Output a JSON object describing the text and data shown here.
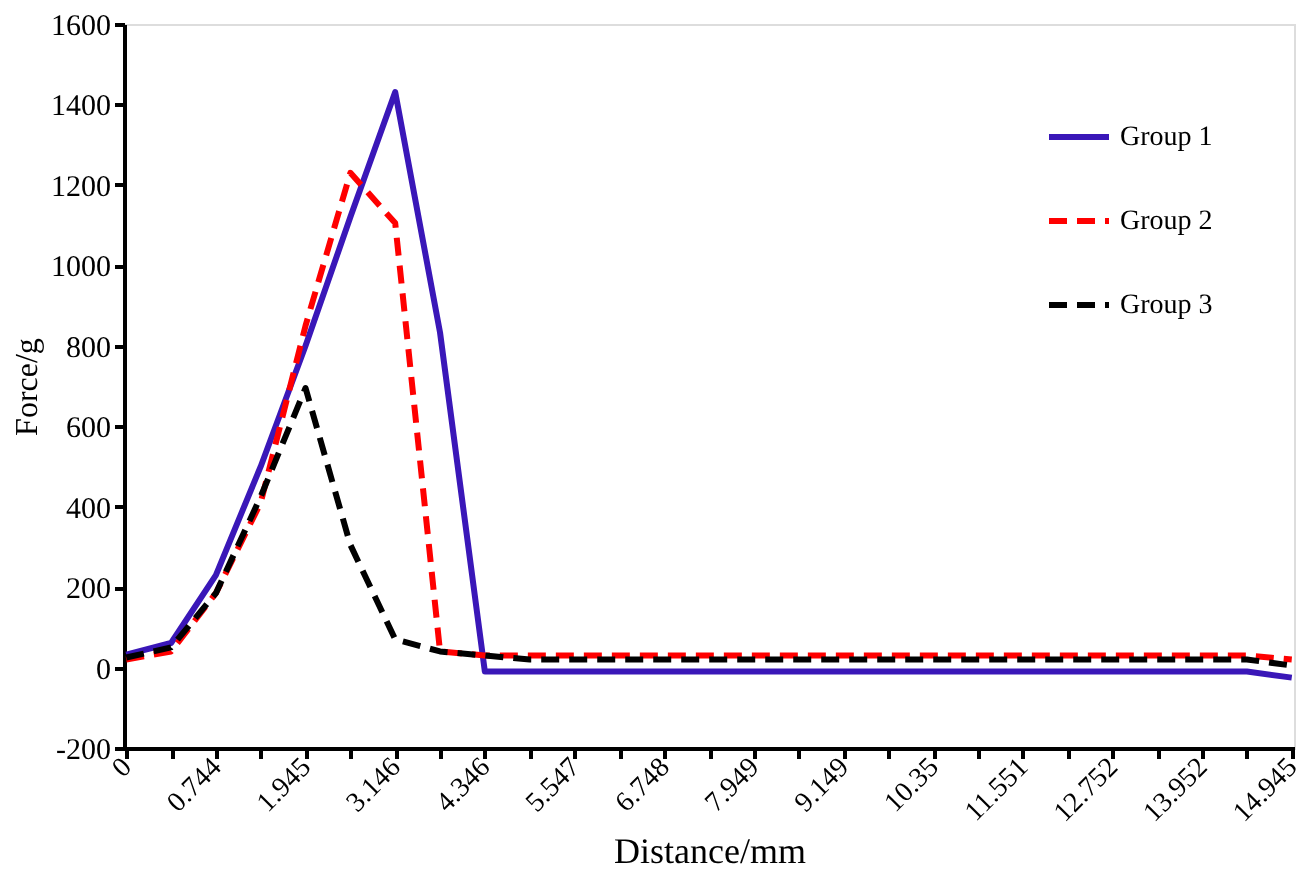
{
  "chart_data": {
    "type": "line",
    "xlabel": "Distance/mm",
    "ylabel": "Force/g",
    "categories": [
      "0",
      null,
      "0.744",
      null,
      "1.945",
      null,
      "3.146",
      null,
      "4.346",
      null,
      "5.547",
      null,
      "6.748",
      null,
      "7.949",
      null,
      "9.149",
      null,
      "10.35",
      null,
      "11.551",
      null,
      "12.752",
      null,
      "13.952",
      null,
      "14.945"
    ],
    "series": [
      {
        "name": "Group 1",
        "color": "#3a17b8",
        "line_style": "solid",
        "values": [
          32,
          61,
          230,
          500,
          800,
          1120,
          1431,
          833,
          -10,
          -10,
          -10,
          -10,
          -10,
          -10,
          -10,
          -10,
          -10,
          -10,
          -10,
          -10,
          -10,
          -10,
          -10,
          -10,
          -10,
          -10,
          -25
        ]
      },
      {
        "name": "Group 2",
        "color": "#ff0000",
        "line_style": "dashed",
        "values": [
          20,
          40,
          185,
          410,
          850,
          1230,
          1105,
          40,
          30,
          30,
          30,
          30,
          30,
          30,
          30,
          30,
          30,
          30,
          30,
          30,
          30,
          30,
          30,
          30,
          30,
          30,
          20
        ]
      },
      {
        "name": "Group 3",
        "color": "#000000",
        "line_style": "dashed",
        "values": [
          25,
          50,
          185,
          425,
          695,
          305,
          70,
          40,
          30,
          20,
          20,
          20,
          20,
          20,
          20,
          20,
          20,
          20,
          20,
          20,
          20,
          20,
          20,
          20,
          20,
          20,
          5
        ]
      }
    ],
    "ylim": [
      -200,
      1600
    ],
    "yticks": [
      -200,
      0,
      200,
      400,
      600,
      800,
      1000,
      1200,
      1400,
      1600
    ],
    "grid": false,
    "legend": "top right",
    "marker": "none"
  }
}
